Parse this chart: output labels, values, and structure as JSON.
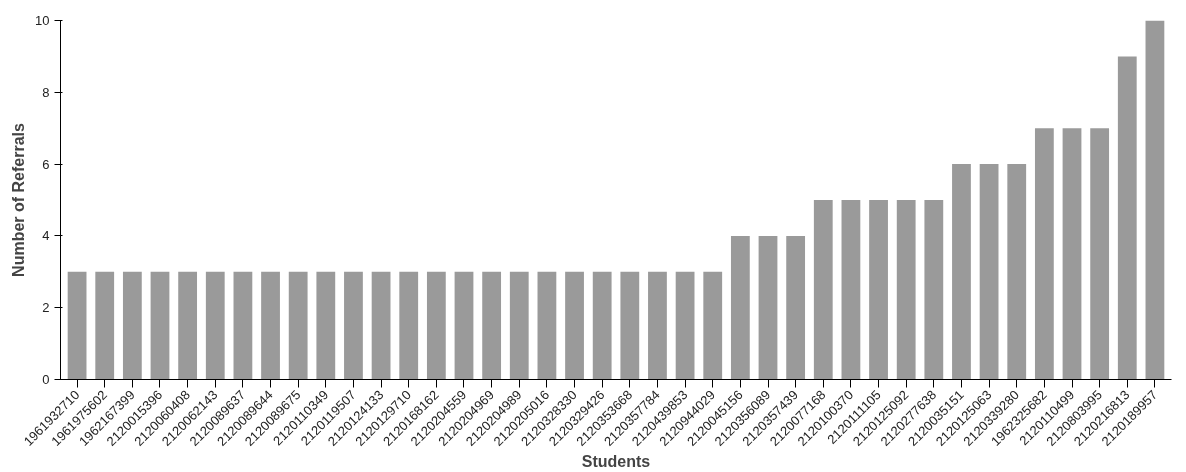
{
  "chart_data": {
    "type": "bar",
    "xlabel": "Students",
    "ylabel": "Number of Referrals",
    "categories": [
      "1961932710",
      "1961975602",
      "1962167399",
      "2120015396",
      "2120060408",
      "2120062143",
      "2120089637",
      "2120089644",
      "2120089675",
      "2120110349",
      "2120119507",
      "2120124133",
      "2120129710",
      "2120168162",
      "2120204559",
      "2120204969",
      "2120204989",
      "2120205016",
      "2120328330",
      "2120329426",
      "2120353668",
      "2120357784",
      "2120439853",
      "2120944029",
      "2120045156",
      "2120356089",
      "2120357439",
      "2120077168",
      "2120100370",
      "2120111105",
      "2120125092",
      "2120277638",
      "2120035151",
      "2120125063",
      "2120339280",
      "1962325682",
      "2120110499",
      "2120803995",
      "2120216813",
      "2120189957"
    ],
    "values": [
      3,
      3,
      3,
      3,
      3,
      3,
      3,
      3,
      3,
      3,
      3,
      3,
      3,
      3,
      3,
      3,
      3,
      3,
      3,
      3,
      3,
      3,
      3,
      3,
      4,
      4,
      4,
      5,
      5,
      5,
      5,
      5,
      6,
      6,
      6,
      7,
      7,
      7,
      9,
      10
    ],
    "color": "#9a9a9a",
    "ylim": [
      0,
      10
    ],
    "yticks": [
      0,
      2,
      4,
      6,
      8,
      10
    ],
    "grid": false
  }
}
